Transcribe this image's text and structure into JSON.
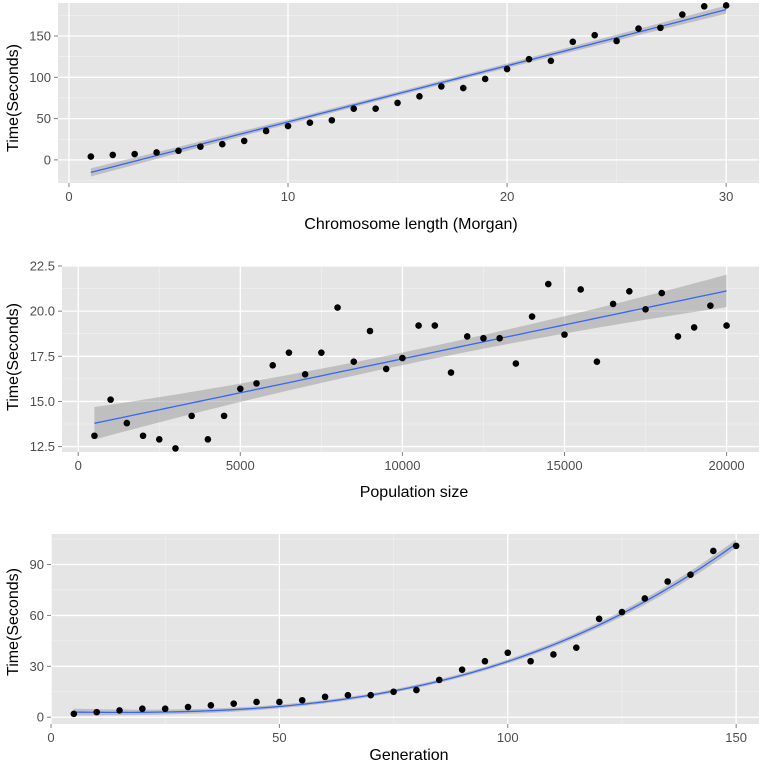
{
  "chart_data": [
    {
      "type": "scatter",
      "xlabel": "Chromosome length (Morgan)",
      "ylabel": "Time(Seconds)",
      "xlim": [
        -0.5,
        31.5
      ],
      "ylim": [
        -28,
        190
      ],
      "x_ticks": [
        0,
        10,
        20,
        30
      ],
      "y_ticks": [
        0,
        50,
        100,
        150
      ],
      "x_tick_labels": [
        "0",
        "10",
        "20",
        "30"
      ],
      "y_tick_labels": [
        "0",
        "50",
        "100",
        "150"
      ],
      "points": [
        [
          1,
          4
        ],
        [
          2,
          6
        ],
        [
          3,
          7
        ],
        [
          4,
          9
        ],
        [
          5,
          11
        ],
        [
          6,
          16
        ],
        [
          7,
          19
        ],
        [
          8,
          23
        ],
        [
          9,
          35
        ],
        [
          10,
          41
        ],
        [
          11,
          45
        ],
        [
          12,
          48
        ],
        [
          13,
          62
        ],
        [
          14,
          62
        ],
        [
          15,
          69
        ],
        [
          16,
          77
        ],
        [
          17,
          89
        ],
        [
          18,
          87
        ],
        [
          19,
          98
        ],
        [
          20,
          110
        ],
        [
          21,
          122
        ],
        [
          22,
          120
        ],
        [
          23,
          143
        ],
        [
          24,
          151
        ],
        [
          25,
          144
        ],
        [
          26,
          159
        ],
        [
          27,
          160
        ],
        [
          28,
          176
        ],
        [
          29,
          186
        ],
        [
          30,
          187
        ]
      ],
      "fit": {
        "kind": "linear",
        "intercept": -22,
        "slope": 6.8,
        "band": [
          5,
          2.5,
          5
        ]
      },
      "grid": true
    },
    {
      "type": "scatter",
      "xlabel": "Population size",
      "ylabel": "Time(Seconds)",
      "xlim": [
        -500,
        21000
      ],
      "ylim": [
        12.2,
        22.5
      ],
      "x_ticks": [
        0,
        5000,
        10000,
        15000,
        20000
      ],
      "y_ticks": [
        12.5,
        15.0,
        17.5,
        20.0,
        22.5
      ],
      "x_tick_labels": [
        "0",
        "5000",
        "10000",
        "15000",
        "20000"
      ],
      "y_tick_labels": [
        "12.5",
        "15.0",
        "17.5",
        "20.0",
        "22.5"
      ],
      "points": [
        [
          500,
          13.1
        ],
        [
          1000,
          15.1
        ],
        [
          1500,
          13.8
        ],
        [
          2000,
          13.1
        ],
        [
          2500,
          12.9
        ],
        [
          3000,
          12.4
        ],
        [
          3500,
          14.2
        ],
        [
          4000,
          12.9
        ],
        [
          4500,
          14.2
        ],
        [
          5000,
          15.7
        ],
        [
          5500,
          16.0
        ],
        [
          6000,
          17.0
        ],
        [
          6500,
          17.7
        ],
        [
          7000,
          16.5
        ],
        [
          7500,
          17.7
        ],
        [
          8000,
          20.2
        ],
        [
          8500,
          17.2
        ],
        [
          9000,
          18.9
        ],
        [
          9500,
          16.8
        ],
        [
          10000,
          17.4
        ],
        [
          10500,
          19.2
        ],
        [
          11000,
          19.2
        ],
        [
          11500,
          16.6
        ],
        [
          12000,
          18.6
        ],
        [
          12500,
          18.5
        ],
        [
          13000,
          18.5
        ],
        [
          13500,
          17.1
        ],
        [
          14000,
          19.7
        ],
        [
          14500,
          21.5
        ],
        [
          15000,
          18.7
        ],
        [
          15500,
          21.2
        ],
        [
          16000,
          17.2
        ],
        [
          16500,
          20.4
        ],
        [
          17000,
          21.1
        ],
        [
          17500,
          20.1
        ],
        [
          18000,
          21.0
        ],
        [
          18500,
          18.6
        ],
        [
          19000,
          19.1
        ],
        [
          19500,
          20.3
        ],
        [
          20000,
          19.2
        ]
      ],
      "fit": {
        "kind": "linear",
        "intercept": 13.6,
        "slope": 0.000376,
        "band": [
          0.9,
          0.35,
          0.9
        ]
      },
      "grid": true
    },
    {
      "type": "scatter",
      "xlabel": "Generation",
      "ylabel": "Time(Seconds)",
      "xlim": [
        0,
        155
      ],
      "ylim": [
        -4,
        108
      ],
      "x_ticks": [
        0,
        50,
        100,
        150
      ],
      "y_ticks": [
        0,
        30,
        60,
        90
      ],
      "x_tick_labels": [
        "0",
        "50",
        "100",
        "150"
      ],
      "y_tick_labels": [
        "0",
        "30",
        "60",
        "90"
      ],
      "points": [
        [
          5,
          2
        ],
        [
          10,
          3
        ],
        [
          15,
          4
        ],
        [
          20,
          5
        ],
        [
          25,
          5
        ],
        [
          30,
          6
        ],
        [
          35,
          7
        ],
        [
          40,
          8
        ],
        [
          45,
          9
        ],
        [
          50,
          9
        ],
        [
          55,
          10
        ],
        [
          60,
          12
        ],
        [
          65,
          13
        ],
        [
          70,
          13
        ],
        [
          75,
          15
        ],
        [
          80,
          16
        ],
        [
          85,
          22
        ],
        [
          90,
          28
        ],
        [
          95,
          33
        ],
        [
          100,
          38
        ],
        [
          105,
          33
        ],
        [
          110,
          37
        ],
        [
          115,
          41
        ],
        [
          120,
          58
        ],
        [
          125,
          62
        ],
        [
          130,
          70
        ],
        [
          135,
          80
        ],
        [
          140,
          84
        ],
        [
          145,
          98
        ],
        [
          150,
          101
        ]
      ],
      "fit": {
        "kind": "poly",
        "coef": [
          3.2,
          -0.0413,
          0.00078,
          2.6e-05
        ],
        "band": [
          2.0,
          1.0,
          2.5
        ]
      },
      "grid": true
    }
  ]
}
